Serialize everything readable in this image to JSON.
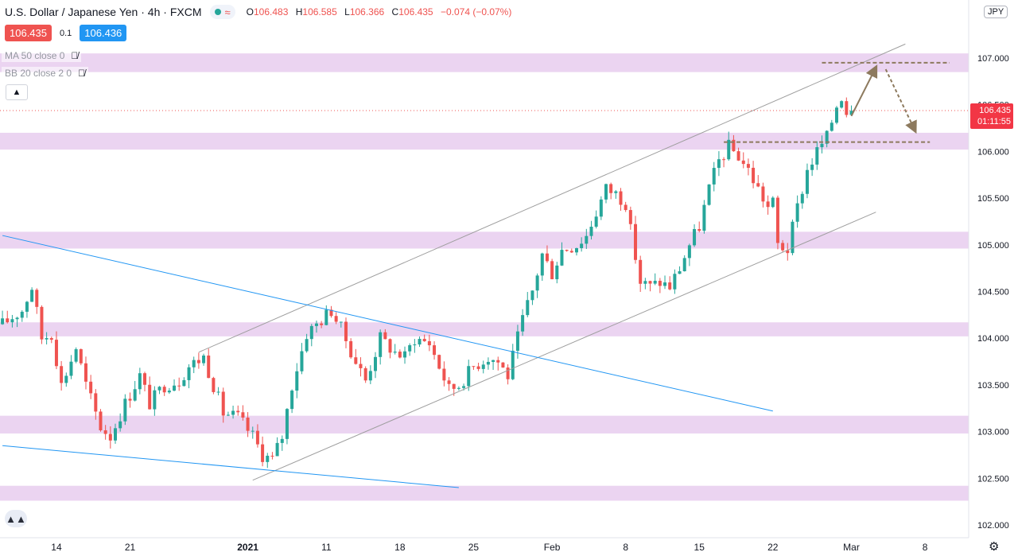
{
  "header": {
    "symbol": "U.S. Dollar / Japanese Yen",
    "interval": "4h",
    "exchange": "FXCM",
    "o_label": "O",
    "o": "106.483",
    "h_label": "H",
    "h": "106.585",
    "l_label": "L",
    "l": "106.366",
    "c_label": "C",
    "c": "106.435",
    "change": "−0.074 (−0.07%)"
  },
  "prices": {
    "sell": "106.435",
    "spread": "0.1",
    "buy": "106.436"
  },
  "indicators": [
    {
      "label": "MA 50 close 0"
    },
    {
      "label": "BB 20 close 2 0"
    }
  ],
  "icons": {
    "eye": "eye-off-icon",
    "collapse": "chevron-up-icon",
    "logo": "tradingview-logo-icon",
    "settings": "gear-icon"
  },
  "current_price": {
    "value": "106.435",
    "countdown": "01:11:55"
  },
  "currency": "JPY",
  "colors": {
    "up": "#26a69a",
    "down": "#ef5350",
    "zone": "#e6c9ee",
    "channel": "#9e9e9e",
    "trend": "#2196f3",
    "arrow": "#8d7a5e"
  },
  "chart_data": {
    "type": "candlestick",
    "x_ticks": [
      "14",
      "21",
      "2021",
      "11",
      "18",
      "25",
      "Feb",
      "8",
      "15",
      "22",
      "Mar",
      "8"
    ],
    "y_ticks": [
      "102.000",
      "102.500",
      "103.000",
      "103.500",
      "104.000",
      "104.500",
      "105.000",
      "105.500",
      "106.000",
      "106.500",
      "107.000"
    ],
    "ylim": [
      101.95,
      107.2
    ],
    "xlim": [
      0,
      173
    ],
    "grid": false,
    "close_path": [
      [
        0,
        104.15
      ],
      [
        4,
        104.3
      ],
      [
        6,
        104.55
      ],
      [
        8,
        104.0
      ],
      [
        10,
        104.05
      ],
      [
        12,
        103.5
      ],
      [
        15,
        103.9
      ],
      [
        17,
        103.5
      ],
      [
        20,
        103.05
      ],
      [
        22,
        102.95
      ],
      [
        25,
        103.3
      ],
      [
        28,
        103.6
      ],
      [
        30,
        103.3
      ],
      [
        33,
        103.5
      ],
      [
        36,
        103.55
      ],
      [
        38,
        103.7
      ],
      [
        41,
        103.8
      ],
      [
        43,
        103.5
      ],
      [
        45,
        103.2
      ],
      [
        48,
        103.15
      ],
      [
        51,
        102.95
      ],
      [
        53,
        102.75
      ],
      [
        55,
        102.7
      ],
      [
        57,
        102.95
      ],
      [
        59,
        103.5
      ],
      [
        62,
        104.05
      ],
      [
        65,
        104.2
      ],
      [
        67,
        104.3
      ],
      [
        69,
        104.1
      ],
      [
        72,
        103.75
      ],
      [
        74,
        103.55
      ],
      [
        77,
        104.0
      ],
      [
        80,
        103.85
      ],
      [
        82,
        103.8
      ],
      [
        84,
        104.0
      ],
      [
        87,
        103.95
      ],
      [
        89,
        103.7
      ],
      [
        91,
        103.45
      ],
      [
        93,
        103.5
      ],
      [
        96,
        103.7
      ],
      [
        99,
        103.8
      ],
      [
        101,
        103.75
      ],
      [
        103,
        103.6
      ],
      [
        104,
        103.8
      ],
      [
        106,
        104.2
      ],
      [
        108,
        104.5
      ],
      [
        110,
        104.9
      ],
      [
        112,
        104.7
      ],
      [
        114,
        104.95
      ],
      [
        117,
        105.0
      ],
      [
        119,
        105.1
      ],
      [
        121,
        105.35
      ],
      [
        123,
        105.6
      ],
      [
        125,
        105.55
      ],
      [
        127,
        105.45
      ],
      [
        128,
        105.15
      ],
      [
        130,
        104.6
      ],
      [
        132,
        104.55
      ],
      [
        134,
        104.6
      ],
      [
        136,
        104.55
      ],
      [
        138,
        104.75
      ],
      [
        140,
        105.0
      ],
      [
        142,
        105.2
      ],
      [
        144,
        105.6
      ],
      [
        146,
        105.9
      ],
      [
        148,
        106.05
      ],
      [
        150,
        105.95
      ],
      [
        152,
        105.8
      ],
      [
        154,
        105.6
      ],
      [
        156,
        105.4
      ],
      [
        157,
        105.45
      ],
      [
        158,
        105.0
      ],
      [
        160,
        104.95
      ],
      [
        162,
        105.4
      ],
      [
        164,
        105.8
      ],
      [
        166,
        106.0
      ],
      [
        168,
        106.15
      ],
      [
        170,
        106.5
      ],
      [
        171,
        106.6
      ],
      [
        172,
        106.435
      ]
    ],
    "channel_upper": [
      [
        40,
        103.85
      ],
      [
        184,
        107.15
      ]
    ],
    "channel_lower": [
      [
        51,
        102.48
      ],
      [
        178,
        105.35
      ]
    ],
    "trend_lines": [
      [
        [
          0,
          105.1
        ],
        [
          157,
          103.22
        ]
      ],
      [
        [
          0,
          102.85
        ],
        [
          93,
          102.4
        ]
      ]
    ],
    "zones": [
      [
        106.85,
        107.05
      ],
      [
        106.02,
        106.2
      ],
      [
        104.96,
        105.14
      ],
      [
        104.02,
        104.17
      ],
      [
        102.98,
        103.17
      ],
      [
        102.26,
        102.42
      ]
    ],
    "levels": [
      {
        "y": 106.95,
        "x": [
          167,
          193
        ]
      },
      {
        "y": 106.1,
        "x": [
          147,
          189
        ]
      }
    ],
    "arrows": [
      [
        [
          173,
          106.38
        ],
        [
          178,
          106.9
        ]
      ],
      [
        [
          180,
          106.88
        ],
        [
          186,
          106.22
        ]
      ]
    ]
  }
}
